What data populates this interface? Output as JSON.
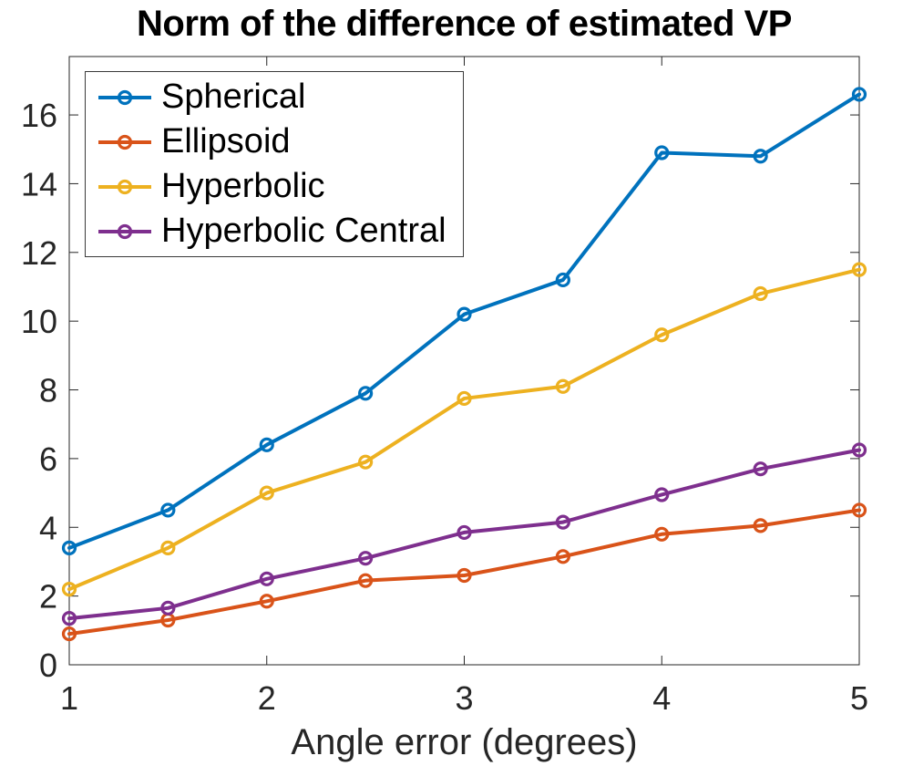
{
  "chart_data": {
    "type": "line",
    "title": "Norm of the difference of estimated VP",
    "xlabel": "Angle error (degrees)",
    "ylabel": "",
    "x": [
      1,
      1.5,
      2,
      2.5,
      3,
      3.5,
      4,
      4.5,
      5
    ],
    "series": [
      {
        "name": "Spherical",
        "color": "#0072BD",
        "values": [
          3.4,
          4.5,
          6.4,
          7.9,
          10.2,
          11.2,
          14.9,
          14.8,
          16.6
        ]
      },
      {
        "name": "Ellipsoid",
        "color": "#D95319",
        "values": [
          0.9,
          1.3,
          1.85,
          2.45,
          2.6,
          3.15,
          3.8,
          4.05,
          4.5
        ]
      },
      {
        "name": "Hyperbolic",
        "color": "#EDB120",
        "values": [
          2.2,
          3.4,
          5.0,
          5.9,
          7.75,
          8.1,
          9.6,
          10.8,
          11.5
        ]
      },
      {
        "name": "Hyperbolic Central",
        "color": "#7E2F8E",
        "values": [
          1.35,
          1.65,
          2.5,
          3.1,
          3.85,
          4.15,
          4.95,
          5.7,
          6.25
        ]
      }
    ],
    "xlim": [
      1,
      5
    ],
    "ylim": [
      0,
      17.7
    ],
    "x_ticks": [
      1,
      2,
      3,
      4,
      5
    ],
    "y_ticks": [
      0,
      2,
      4,
      6,
      8,
      10,
      12,
      14,
      16
    ],
    "grid": false,
    "legend_position": "top-left",
    "marker": "open-circle",
    "axis_color": "#262626",
    "tick_direction": "in"
  }
}
